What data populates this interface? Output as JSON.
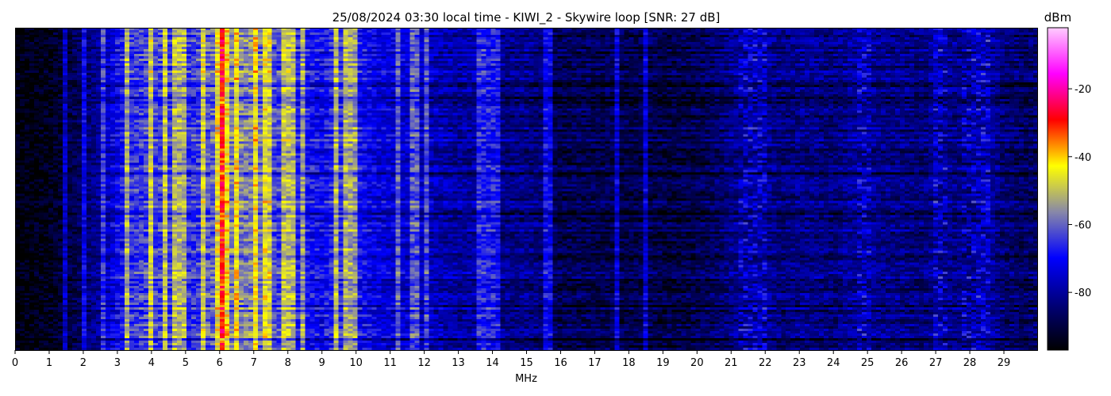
{
  "chart_data": {
    "type": "heatmap",
    "title": "25/08/2024 03:30 local time - KIWI_2 - Skywire loop [SNR: 27 dB]",
    "xlabel": "MHz",
    "ylabel": "",
    "xlim": [
      0,
      30
    ],
    "x_ticks": [
      "0",
      "1",
      "2",
      "3",
      "4",
      "5",
      "6",
      "7",
      "8",
      "9",
      "10",
      "11",
      "12",
      "13",
      "14",
      "15",
      "16",
      "17",
      "18",
      "19",
      "20",
      "21",
      "22",
      "23",
      "24",
      "25",
      "26",
      "27",
      "28",
      "29"
    ],
    "colorbar": {
      "label": "dBm",
      "range": [
        -97,
        -2
      ],
      "ticks": [
        "-20",
        "-40",
        "-60",
        "-80"
      ],
      "colormap": [
        "#000000",
        "#00007a",
        "#0000ff",
        "#8888a8",
        "#ffff00",
        "#ff0000",
        "#ff00ff",
        "#ffccff"
      ]
    },
    "x_mhz": [
      0,
      0.5,
      1,
      1.5,
      2,
      2.5,
      3,
      3.5,
      4,
      4.5,
      5,
      5.5,
      6,
      6.5,
      7,
      7.5,
      8,
      8.5,
      9,
      9.5,
      10,
      10.5,
      11,
      11.5,
      12,
      12.5,
      13,
      13.5,
      14,
      14.5,
      15,
      15.5,
      16,
      16.5,
      17,
      17.5,
      18,
      18.5,
      19,
      19.5,
      20,
      20.5,
      21,
      21.5,
      22,
      22.5,
      23,
      23.5,
      24,
      24.5,
      25,
      25.5,
      26,
      26.5,
      27,
      27.5,
      28,
      28.5,
      29,
      29.5
    ],
    "mean_level_dbm": [
      -96,
      -95,
      -94,
      -90,
      -86,
      -80,
      -70,
      -64,
      -62,
      -64,
      -66,
      -62,
      -58,
      -56,
      -56,
      -62,
      -64,
      -68,
      -70,
      -64,
      -68,
      -72,
      -74,
      -74,
      -76,
      -78,
      -80,
      -79,
      -82,
      -82,
      -82,
      -84,
      -88,
      -87,
      -88,
      -87,
      -89,
      -88,
      -89,
      -89,
      -88,
      -86,
      -82,
      -80,
      -80,
      -84,
      -82,
      -82,
      -84,
      -80,
      -80,
      -82,
      -82,
      -84,
      -80,
      -82,
      -82,
      -78,
      -84,
      -86
    ],
    "strong_carriers_mhz": [
      1.5,
      2.0,
      2.55,
      3.3,
      3.95,
      4.35,
      4.75,
      5.0,
      5.55,
      6.0,
      6.05,
      6.25,
      6.45,
      7.1,
      7.3,
      7.45,
      7.85,
      8.1,
      8.5,
      9.45,
      9.7,
      9.9,
      11.2,
      11.6,
      11.85,
      12.05,
      13.55,
      13.7,
      13.9,
      14.1,
      15.55,
      15.65,
      17.6,
      18.45
    ],
    "active_bands_mhz": [
      [
        21.2,
        22.1
      ],
      [
        24.7,
        25.1
      ],
      [
        26.9,
        27.3
      ],
      [
        27.8,
        28.6
      ]
    ]
  }
}
